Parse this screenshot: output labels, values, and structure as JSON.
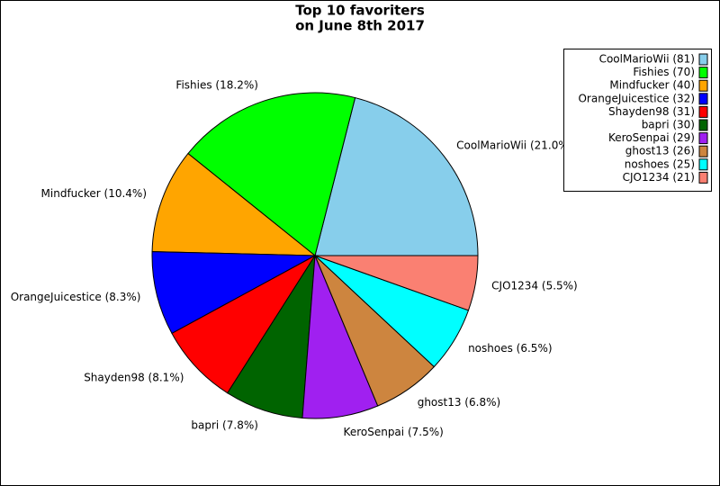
{
  "chart_data": {
    "type": "pie",
    "title": [
      "Top 10 favoriters",
      "on June 8th 2017"
    ],
    "categories": [
      "CoolMarioWii",
      "Fishies",
      "Mindfucker",
      "OrangeJuicestice",
      "Shayden98",
      "bapri",
      "KeroSenpai",
      "ghost13",
      "noshoes",
      "CJO1234"
    ],
    "values": [
      81,
      70,
      40,
      32,
      31,
      30,
      29,
      26,
      25,
      21
    ],
    "value_labels": [
      "CoolMarioWii (81)",
      "Fishies (70)",
      "Mindfucker (40)",
      "OrangeJuicestice (32)",
      "Shayden98 (31)",
      "bapri (30)",
      "KeroSenpai (29)",
      "ghost13 (26)",
      "noshoes (25)",
      "CJO1234 (21)"
    ],
    "slice_labels": [
      "CoolMarioWii (21.0%)",
      "Fishies (18.2%)",
      "Mindfucker (10.4%)",
      "OrangeJuicestice (8.3%)",
      "Shayden98 (8.1%)",
      "bapri (7.8%)",
      "KeroSenpai (7.5%)",
      "ghost13 (6.8%)",
      "noshoes (6.5%)",
      "CJO1234 (5.5%)"
    ],
    "colors": [
      "#87ceeb",
      "#00ff00",
      "#ffa500",
      "#0000ff",
      "#ff0000",
      "#006400",
      "#a020f0",
      "#cd853f",
      "#00ffff",
      "#fa8072"
    ],
    "legend": "upper right"
  }
}
